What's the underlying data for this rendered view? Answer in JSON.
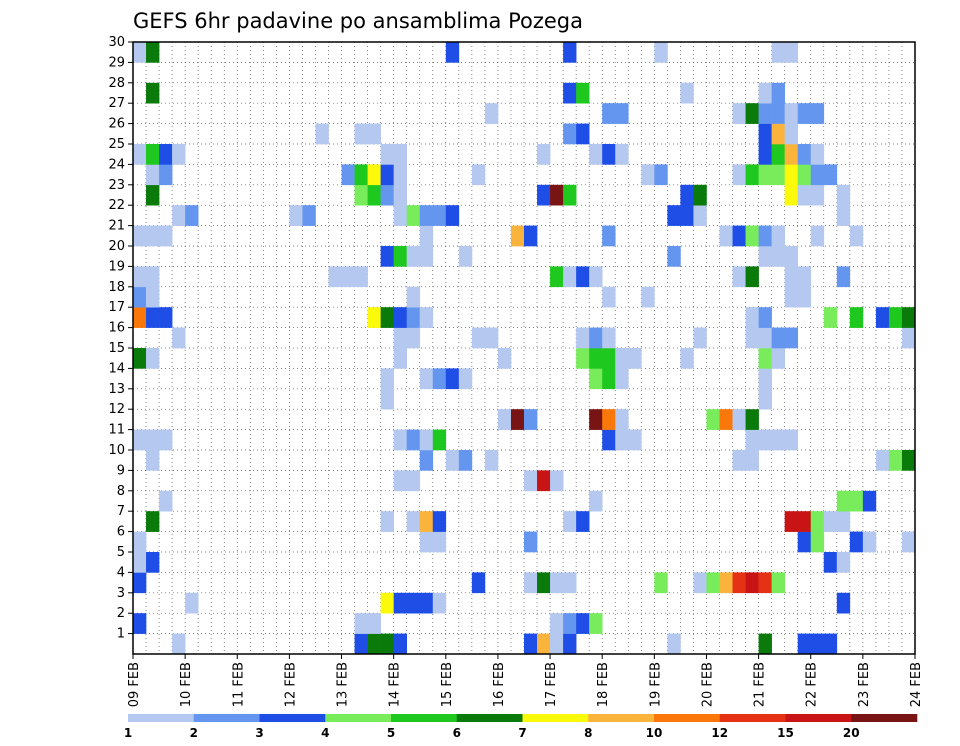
{
  "chart_data": {
    "type": "heatmap",
    "title": "GEFS 6hr padavine po ansamblima Pozega",
    "xlabel": "",
    "ylabel": "",
    "members": [
      1,
      2,
      3,
      4,
      5,
      6,
      7,
      8,
      9,
      10,
      11,
      12,
      13,
      14,
      15,
      16,
      17,
      18,
      19,
      20,
      21,
      22,
      23,
      24,
      25,
      26,
      27,
      28,
      29,
      30
    ],
    "x_ticks": [
      "09 FEB",
      "10 FEB",
      "11 FEB",
      "12 FEB",
      "13 FEB",
      "14 FEB",
      "15 FEB",
      "16 FEB",
      "17 FEB",
      "18 FEB",
      "19 FEB",
      "20 FEB",
      "21 FEB",
      "22 FEB",
      "23 FEB",
      "24 FEB"
    ],
    "time_steps_per_day": 4,
    "num_time_steps": 60,
    "grid": true,
    "colorbar": {
      "levels": [
        "1",
        "2",
        "3",
        "4",
        "5",
        "6",
        "7",
        "8",
        "10",
        "12",
        "15",
        "20"
      ],
      "colors": [
        "#b4c8f0",
        "#6496f0",
        "#1e4ee6",
        "#78ec5a",
        "#1ec81e",
        "#0a7a0a",
        "#fafa0a",
        "#fab43c",
        "#fa780a",
        "#e63214",
        "#c81414",
        "#781414"
      ]
    },
    "cells": [
      [
        1,
        4,
        1
      ],
      [
        1,
        19,
        1
      ],
      [
        1,
        33,
        3
      ],
      [
        1,
        34,
        6
      ],
      [
        1,
        35,
        6
      ],
      [
        1,
        36,
        3
      ],
      [
        1,
        46,
        3
      ],
      [
        1,
        47,
        8
      ],
      [
        1,
        48,
        1
      ],
      [
        1,
        49,
        3
      ],
      [
        1,
        57,
        1
      ],
      [
        1,
        64,
        6
      ],
      [
        1,
        67,
        3
      ],
      [
        1,
        68,
        3
      ],
      [
        1,
        69,
        3
      ],
      [
        2,
        1,
        1
      ],
      [
        2,
        2,
        1
      ],
      [
        2,
        16,
        3
      ],
      [
        2,
        33,
        1
      ],
      [
        2,
        34,
        1
      ],
      [
        2,
        48,
        1
      ],
      [
        2,
        49,
        2
      ],
      [
        2,
        50,
        3
      ],
      [
        2,
        51,
        4
      ],
      [
        3,
        7,
        1
      ],
      [
        3,
        20,
        1
      ],
      [
        3,
        35,
        7
      ],
      [
        3,
        36,
        3
      ],
      [
        3,
        37,
        3
      ],
      [
        3,
        38,
        3
      ],
      [
        3,
        39,
        1
      ],
      [
        3,
        70,
        3
      ],
      [
        4,
        2,
        1
      ],
      [
        4,
        16,
        3
      ],
      [
        4,
        42,
        3
      ],
      [
        4,
        46,
        1
      ],
      [
        4,
        47,
        6
      ],
      [
        4,
        48,
        1
      ],
      [
        4,
        49,
        1
      ],
      [
        4,
        56,
        4
      ],
      [
        4,
        59,
        1
      ],
      [
        4,
        60,
        4
      ],
      [
        4,
        61,
        8
      ],
      [
        4,
        62,
        10
      ],
      [
        4,
        63,
        11
      ],
      [
        4,
        64,
        10
      ],
      [
        4,
        65,
        4
      ],
      [
        5,
        16,
        1
      ],
      [
        5,
        17,
        3
      ],
      [
        5,
        69,
        3
      ],
      [
        5,
        70,
        1
      ],
      [
        6,
        2,
        2
      ],
      [
        6,
        16,
        1
      ],
      [
        6,
        38,
        1
      ],
      [
        6,
        39,
        1
      ],
      [
        6,
        46,
        2
      ],
      [
        6,
        67,
        3
      ],
      [
        6,
        68,
        4
      ],
      [
        6,
        71,
        3
      ],
      [
        6,
        72,
        1
      ],
      [
        6,
        75,
        1
      ],
      [
        7,
        7,
        3
      ],
      [
        7,
        12,
        1
      ],
      [
        7,
        17,
        6
      ],
      [
        7,
        35,
        1
      ],
      [
        7,
        37,
        1
      ],
      [
        7,
        38,
        8
      ],
      [
        7,
        39,
        3
      ],
      [
        7,
        49,
        1
      ],
      [
        7,
        50,
        3
      ],
      [
        7,
        66,
        11
      ],
      [
        7,
        67,
        11
      ],
      [
        7,
        68,
        4
      ],
      [
        7,
        69,
        1
      ],
      [
        7,
        70,
        1
      ],
      [
        8,
        7,
        1
      ],
      [
        8,
        8,
        2
      ],
      [
        8,
        11,
        1
      ],
      [
        8,
        14,
        1
      ],
      [
        8,
        18,
        1
      ],
      [
        8,
        51,
        1
      ],
      [
        8,
        70,
        4
      ],
      [
        8,
        71,
        4
      ],
      [
        8,
        72,
        3
      ],
      [
        9,
        14,
        4
      ],
      [
        9,
        15,
        9
      ],
      [
        9,
        36,
        1
      ],
      [
        9,
        37,
        1
      ],
      [
        9,
        46,
        1
      ],
      [
        9,
        47,
        11
      ],
      [
        9,
        48,
        1
      ],
      [
        10,
        8,
        1
      ],
      [
        10,
        17,
        1
      ],
      [
        10,
        38,
        2
      ],
      [
        10,
        40,
        1
      ],
      [
        10,
        41,
        2
      ],
      [
        10,
        43,
        1
      ],
      [
        10,
        62,
        1
      ],
      [
        10,
        63,
        1
      ],
      [
        10,
        73,
        1
      ],
      [
        10,
        74,
        4
      ],
      [
        10,
        75,
        6
      ],
      [
        10,
        76,
        7
      ],
      [
        11,
        13,
        3
      ],
      [
        11,
        14,
        6
      ],
      [
        11,
        15,
        1
      ],
      [
        11,
        16,
        1
      ],
      [
        11,
        17,
        1
      ],
      [
        11,
        18,
        1
      ],
      [
        11,
        36,
        1
      ],
      [
        11,
        37,
        2
      ],
      [
        11,
        38,
        1
      ],
      [
        11,
        39,
        5
      ],
      [
        11,
        52,
        3
      ],
      [
        11,
        53,
        1
      ],
      [
        11,
        54,
        1
      ],
      [
        11,
        63,
        1
      ],
      [
        11,
        64,
        1
      ],
      [
        11,
        65,
        1
      ],
      [
        11,
        66,
        1
      ],
      [
        12,
        3,
        2
      ],
      [
        12,
        15,
        8
      ],
      [
        12,
        44,
        1
      ],
      [
        12,
        45,
        12
      ],
      [
        12,
        46,
        2
      ],
      [
        12,
        51,
        12
      ],
      [
        12,
        52,
        9
      ],
      [
        12,
        53,
        1
      ],
      [
        12,
        60,
        4
      ],
      [
        12,
        61,
        9
      ],
      [
        12,
        62,
        1
      ],
      [
        12,
        63,
        6
      ],
      [
        13,
        15,
        8
      ],
      [
        13,
        35,
        1
      ],
      [
        13,
        64,
        1
      ],
      [
        13,
        76,
        2
      ],
      [
        14,
        35,
        1
      ],
      [
        14,
        38,
        1
      ],
      [
        14,
        39,
        2
      ],
      [
        14,
        40,
        3
      ],
      [
        14,
        41,
        1
      ],
      [
        14,
        51,
        4
      ],
      [
        14,
        52,
        5
      ],
      [
        14,
        53,
        1
      ],
      [
        14,
        64,
        1
      ],
      [
        15,
        15,
        1
      ],
      [
        15,
        16,
        6
      ],
      [
        15,
        17,
        1
      ],
      [
        15,
        36,
        1
      ],
      [
        15,
        44,
        1
      ],
      [
        15,
        50,
        4
      ],
      [
        15,
        51,
        5
      ],
      [
        15,
        52,
        5
      ],
      [
        15,
        53,
        1
      ],
      [
        15,
        54,
        1
      ],
      [
        15,
        58,
        1
      ],
      [
        15,
        64,
        4
      ],
      [
        15,
        65,
        1
      ],
      [
        15,
        76,
        2
      ],
      [
        16,
        4,
        1
      ],
      [
        16,
        19,
        1
      ],
      [
        16,
        36,
        1
      ],
      [
        16,
        37,
        1
      ],
      [
        16,
        42,
        1
      ],
      [
        16,
        43,
        1
      ],
      [
        16,
        50,
        1
      ],
      [
        16,
        51,
        2
      ],
      [
        16,
        52,
        1
      ],
      [
        16,
        59,
        1
      ],
      [
        16,
        63,
        1
      ],
      [
        16,
        64,
        1
      ],
      [
        16,
        65,
        2
      ],
      [
        16,
        66,
        2
      ],
      [
        16,
        75,
        1
      ],
      [
        16,
        76,
        1
      ],
      [
        17,
        4,
        1
      ],
      [
        17,
        15,
        3
      ],
      [
        17,
        16,
        9
      ],
      [
        17,
        17,
        3
      ],
      [
        17,
        18,
        3
      ],
      [
        17,
        34,
        7
      ],
      [
        17,
        35,
        6
      ],
      [
        17,
        36,
        3
      ],
      [
        17,
        37,
        2
      ],
      [
        17,
        38,
        1
      ],
      [
        17,
        63,
        1
      ],
      [
        17,
        64,
        2
      ],
      [
        17,
        69,
        4
      ],
      [
        17,
        71,
        5
      ],
      [
        17,
        73,
        3
      ],
      [
        17,
        74,
        5
      ],
      [
        17,
        75,
        6
      ],
      [
        17,
        76,
        6
      ],
      [
        18,
        16,
        2
      ],
      [
        18,
        17,
        1
      ],
      [
        18,
        37,
        1
      ],
      [
        18,
        52,
        1
      ],
      [
        18,
        55,
        1
      ],
      [
        18,
        66,
        1
      ],
      [
        18,
        67,
        1
      ],
      [
        19,
        1,
        1
      ],
      [
        19,
        2,
        1
      ],
      [
        19,
        7,
        1
      ],
      [
        19,
        16,
        1
      ],
      [
        19,
        17,
        1
      ],
      [
        19,
        31,
        1
      ],
      [
        19,
        32,
        1
      ],
      [
        19,
        33,
        1
      ],
      [
        19,
        48,
        5
      ],
      [
        19,
        49,
        1
      ],
      [
        19,
        50,
        3
      ],
      [
        19,
        51,
        1
      ],
      [
        19,
        62,
        1
      ],
      [
        19,
        63,
        6
      ],
      [
        19,
        66,
        1
      ],
      [
        19,
        67,
        1
      ],
      [
        19,
        70,
        2
      ],
      [
        20,
        35,
        3
      ],
      [
        20,
        36,
        5
      ],
      [
        20,
        37,
        1
      ],
      [
        20,
        38,
        1
      ],
      [
        20,
        41,
        1
      ],
      [
        20,
        57,
        2
      ],
      [
        20,
        64,
        1
      ],
      [
        20,
        65,
        1
      ],
      [
        20,
        66,
        1
      ],
      [
        21,
        3,
        1
      ],
      [
        21,
        4,
        1
      ],
      [
        21,
        17,
        1
      ],
      [
        21,
        16,
        1
      ],
      [
        21,
        18,
        1
      ],
      [
        21,
        38,
        1
      ],
      [
        21,
        45,
        8
      ],
      [
        21,
        46,
        3
      ],
      [
        21,
        52,
        2
      ],
      [
        21,
        61,
        1
      ],
      [
        21,
        62,
        3
      ],
      [
        21,
        63,
        4
      ],
      [
        21,
        64,
        2
      ],
      [
        21,
        65,
        1
      ],
      [
        21,
        68,
        1
      ],
      [
        21,
        71,
        1
      ],
      [
        21,
        76,
        2
      ],
      [
        22,
        2,
        1
      ],
      [
        22,
        3,
        1
      ],
      [
        22,
        19,
        1
      ],
      [
        22,
        20,
        2
      ],
      [
        22,
        28,
        1
      ],
      [
        22,
        29,
        2
      ],
      [
        22,
        36,
        1
      ],
      [
        22,
        37,
        4
      ],
      [
        22,
        38,
        2
      ],
      [
        22,
        39,
        2
      ],
      [
        22,
        40,
        3
      ],
      [
        22,
        57,
        3
      ],
      [
        22,
        58,
        3
      ],
      [
        22,
        59,
        1
      ],
      [
        22,
        70,
        1
      ],
      [
        23,
        7,
        2
      ],
      [
        23,
        8,
        3
      ],
      [
        23,
        17,
        6
      ],
      [
        23,
        33,
        4
      ],
      [
        23,
        34,
        5
      ],
      [
        23,
        35,
        2
      ],
      [
        23,
        36,
        1
      ],
      [
        23,
        47,
        3
      ],
      [
        23,
        48,
        12
      ],
      [
        23,
        49,
        5
      ],
      [
        23,
        58,
        3
      ],
      [
        23,
        59,
        6
      ],
      [
        23,
        66,
        7
      ],
      [
        23,
        67,
        1
      ],
      [
        23,
        68,
        1
      ],
      [
        23,
        70,
        1
      ],
      [
        24,
        2,
        1
      ],
      [
        24,
        17,
        1
      ],
      [
        24,
        18,
        2
      ],
      [
        24,
        32,
        2
      ],
      [
        24,
        33,
        5
      ],
      [
        24,
        34,
        7
      ],
      [
        24,
        35,
        3
      ],
      [
        24,
        36,
        1
      ],
      [
        24,
        42,
        1
      ],
      [
        24,
        55,
        1
      ],
      [
        24,
        56,
        2
      ],
      [
        24,
        62,
        1
      ],
      [
        24,
        63,
        5
      ],
      [
        24,
        64,
        4
      ],
      [
        24,
        65,
        4
      ],
      [
        24,
        66,
        7
      ],
      [
        24,
        67,
        4
      ],
      [
        24,
        68,
        2
      ],
      [
        24,
        69,
        2
      ],
      [
        25,
        16,
        1
      ],
      [
        25,
        17,
        5
      ],
      [
        25,
        18,
        3
      ],
      [
        25,
        19,
        1
      ],
      [
        25,
        35,
        1
      ],
      [
        25,
        36,
        1
      ],
      [
        25,
        47,
        1
      ],
      [
        25,
        51,
        1
      ],
      [
        25,
        52,
        3
      ],
      [
        25,
        53,
        1
      ],
      [
        25,
        64,
        3
      ],
      [
        25,
        65,
        5
      ],
      [
        25,
        66,
        8
      ],
      [
        25,
        67,
        2
      ],
      [
        25,
        68,
        1
      ],
      [
        26,
        1,
        1
      ],
      [
        26,
        2,
        1
      ],
      [
        26,
        5,
        1
      ],
      [
        26,
        6,
        2
      ],
      [
        26,
        7,
        1
      ],
      [
        26,
        30,
        1
      ],
      [
        26,
        33,
        1
      ],
      [
        26,
        34,
        1
      ],
      [
        26,
        49,
        2
      ],
      [
        26,
        50,
        3
      ],
      [
        26,
        64,
        3
      ],
      [
        26,
        65,
        8
      ],
      [
        26,
        66,
        1
      ],
      [
        27,
        2,
        1
      ],
      [
        27,
        43,
        1
      ],
      [
        27,
        52,
        2
      ],
      [
        27,
        53,
        2
      ],
      [
        27,
        62,
        1
      ],
      [
        27,
        63,
        6
      ],
      [
        27,
        64,
        2
      ],
      [
        27,
        65,
        2
      ],
      [
        27,
        66,
        1
      ],
      [
        27,
        67,
        2
      ],
      [
        27,
        68,
        2
      ],
      [
        28,
        17,
        6
      ],
      [
        28,
        49,
        3
      ],
      [
        28,
        50,
        5
      ],
      [
        28,
        58,
        1
      ],
      [
        28,
        64,
        1
      ],
      [
        28,
        65,
        2
      ],
      [
        29,
        12,
        3
      ],
      [
        30,
        16,
        1
      ],
      [
        30,
        17,
        6
      ],
      [
        30,
        40,
        3
      ],
      [
        30,
        49,
        3
      ],
      [
        30,
        56,
        1
      ],
      [
        30,
        65,
        1
      ],
      [
        30,
        66,
        1
      ]
    ]
  }
}
